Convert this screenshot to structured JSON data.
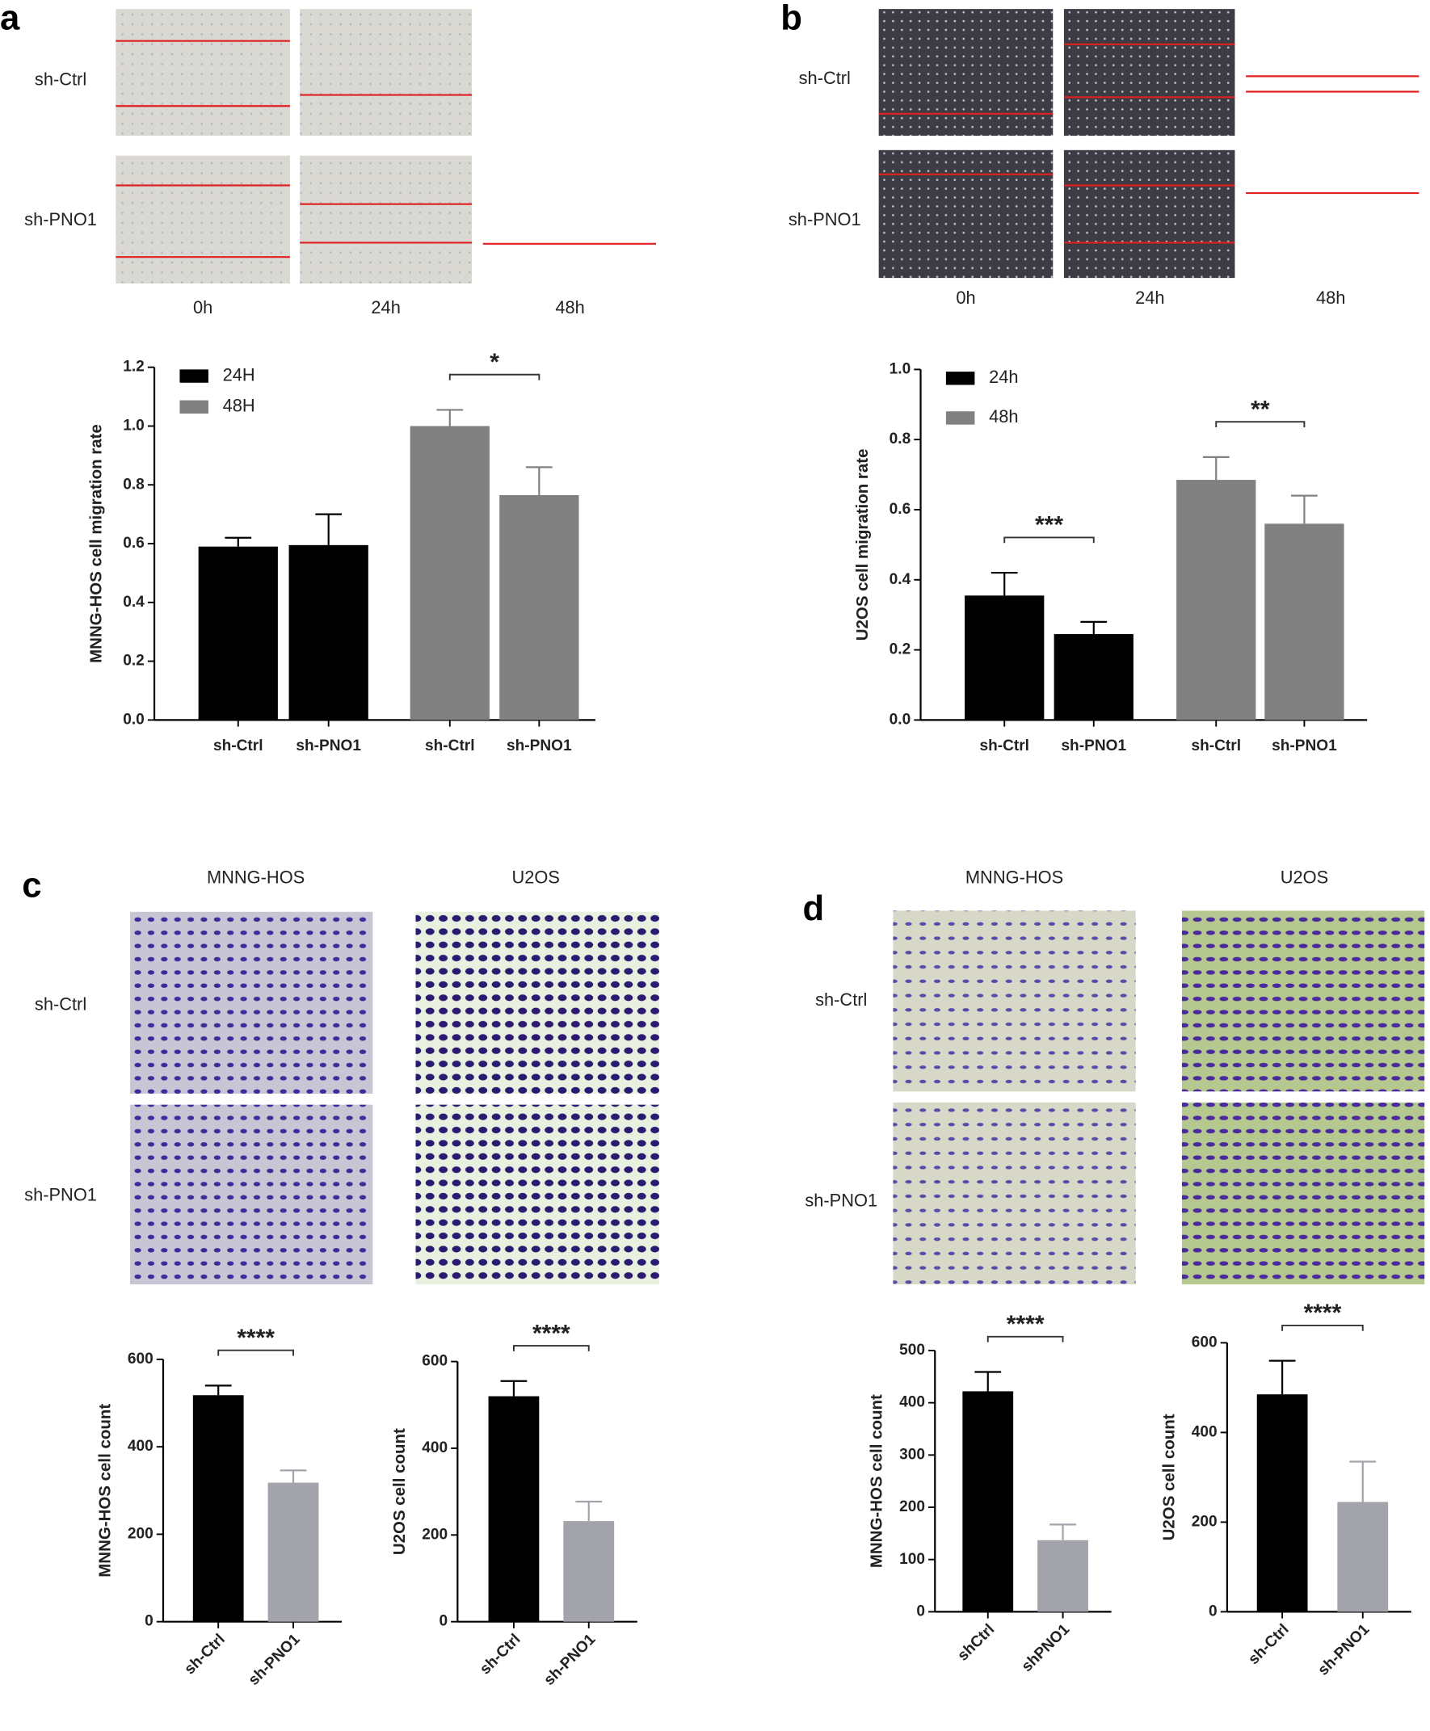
{
  "panels": [
    {
      "letter": "a",
      "row_labels": [
        "sh-Ctrl",
        "sh-PNO1"
      ],
      "col_labels": [
        "0h",
        "24h",
        "48h"
      ]
    },
    {
      "letter": "b",
      "row_labels": [
        "sh-Ctrl",
        "sh-PNO1"
      ],
      "col_labels": [
        "0h",
        "24h",
        "48h"
      ]
    },
    {
      "letter": "c",
      "row_labels": [
        "sh-Ctrl",
        "sh-PNO1"
      ],
      "col_labels": [
        "MNNG-HOS",
        "U2OS"
      ]
    },
    {
      "letter": "d",
      "row_labels": [
        "sh-Ctrl",
        "sh-PNO1"
      ],
      "col_labels": [
        "MNNG-HOS",
        "U2OS"
      ]
    }
  ],
  "chart_data": [
    {
      "type": "bar",
      "categories": [
        "sh-Ctrl",
        "sh-PNO1"
      ],
      "ylabel": "MNNG-HOS cell migration rate",
      "ylim": [
        0,
        1.2
      ],
      "yticks": [
        {
          "value": 0,
          "label": "0.0"
        },
        0.2,
        0.4,
        0.6,
        0.8,
        {
          "value": 1,
          "label": "1.0"
        },
        1.2
      ],
      "series": [
        {
          "name": "24H",
          "color": "#000000",
          "values": [
            0.59,
            0.595
          ],
          "errors": [
            0.03,
            0.105
          ]
        },
        {
          "name": "48H",
          "color": "#808080",
          "values": [
            1.0,
            0.765
          ],
          "errors": [
            0.055,
            0.095
          ]
        }
      ],
      "annotations": [
        {
          "text": "*",
          "series": 1
        }
      ],
      "legend": "upper left"
    },
    {
      "type": "bar",
      "categories": [
        "sh-Ctrl",
        "sh-PNO1"
      ],
      "ylabel": "U2OS cell migration rate",
      "ylim": [
        0,
        1
      ],
      "yticks": [
        {
          "value": 0,
          "label": "0.0"
        },
        0.2,
        0.4,
        0.6,
        0.8,
        {
          "value": 1,
          "label": "1.0"
        }
      ],
      "series": [
        {
          "name": "24h",
          "color": "#000000",
          "values": [
            0.355,
            0.245
          ],
          "errors": [
            0.065,
            0.035
          ]
        },
        {
          "name": "48h",
          "color": "#808080",
          "values": [
            0.685,
            0.56
          ],
          "errors": [
            0.065,
            0.08
          ]
        }
      ],
      "annotations": [
        {
          "text": "***",
          "series": 0
        },
        {
          "text": "**",
          "series": 1
        }
      ],
      "legend": "upper left"
    },
    {
      "type": "bar",
      "categories": [
        "sh-Ctrl",
        "sh-PNO1"
      ],
      "values": [
        518,
        318
      ],
      "errors": [
        22,
        28
      ],
      "colors": [
        "#000000",
        "#a3a3ab"
      ],
      "ylabel": "MNNG-HOS cell count",
      "ylim": [
        0,
        600
      ],
      "yticks": [
        0,
        200,
        400,
        600
      ],
      "annotations": [
        {
          "text": "****"
        }
      ],
      "xtick_rotation": 45
    },
    {
      "type": "bar",
      "categories": [
        "sh-Ctrl",
        "sh-PNO1"
      ],
      "values": [
        520,
        232
      ],
      "errors": [
        35,
        45
      ],
      "colors": [
        "#000000",
        "#a3a3ab"
      ],
      "ylabel": "U2OS cell count",
      "ylim": [
        0,
        600
      ],
      "yticks": [
        0,
        200,
        400,
        600
      ],
      "annotations": [
        {
          "text": "****"
        }
      ],
      "xtick_rotation": 45
    },
    {
      "type": "bar",
      "categories": [
        "shCtrl",
        "shPNO1"
      ],
      "values": [
        422,
        137
      ],
      "errors": [
        37,
        30
      ],
      "colors": [
        "#000000",
        "#a3a3ab"
      ],
      "ylabel": "MNNG-HOS cell count",
      "ylim": [
        0,
        500
      ],
      "yticks": [
        0,
        100,
        200,
        300,
        400,
        500
      ],
      "annotations": [
        {
          "text": "****"
        }
      ],
      "xtick_rotation": 45
    },
    {
      "type": "bar",
      "categories": [
        "sh-Ctrl",
        "sh-PNO1"
      ],
      "values": [
        485,
        245
      ],
      "errors": [
        75,
        90
      ],
      "colors": [
        "#000000",
        "#a3a3ab"
      ],
      "ylabel": "U2OS cell count",
      "ylim": [
        0,
        600
      ],
      "yticks": [
        0,
        200,
        400,
        600
      ],
      "annotations": [
        {
          "text": "****"
        }
      ],
      "xtick_rotation": 45
    }
  ]
}
